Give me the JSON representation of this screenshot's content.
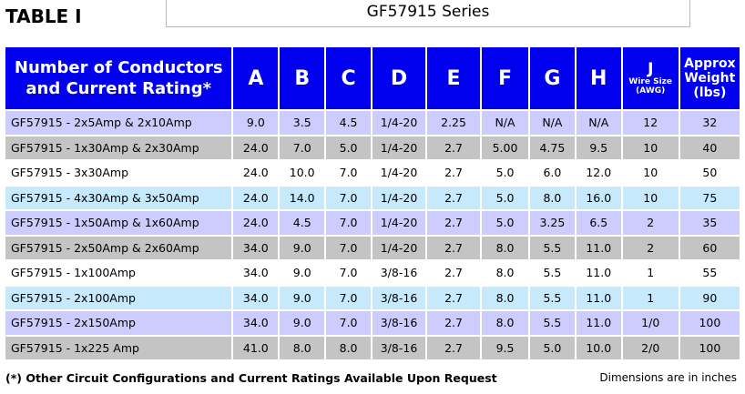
{
  "table_title": "TABLE I",
  "series_title": "GF57915 Series",
  "headers": {
    "conductors": "Number of Conductors and Current Rating*",
    "a": "A",
    "b": "B",
    "c": "C",
    "d": "D",
    "e": "E",
    "f": "F",
    "g": "G",
    "h": "H",
    "j": "J",
    "j_sub1": "Wire Size",
    "j_sub2": "(AWG)",
    "weight": "Approx Weight (lbs)"
  },
  "colors": {
    "header_bg": "#0000ee",
    "row_lavender": "#cccdfe",
    "row_gray": "#c4c4c4",
    "row_white": "#ffffff",
    "row_cyan": "#c6e9fb"
  },
  "rows": [
    {
      "name": "GF57915 - 2x5Amp  & 2x10Amp",
      "a": "9.0",
      "b": "3.5",
      "c": "4.5",
      "d": "1/4-20",
      "e": "2.25",
      "f": "N/A",
      "g": "N/A",
      "h": "N/A",
      "j": "12",
      "weight": "32"
    },
    {
      "name": "GF57915 - 1x30Amp & 2x30Amp",
      "a": "24.0",
      "b": "7.0",
      "c": "5.0",
      "d": "1/4-20",
      "e": "2.7",
      "f": "5.00",
      "g": "4.75",
      "h": "9.5",
      "j": "10",
      "weight": "40"
    },
    {
      "name": "GF57915 - 3x30Amp",
      "a": "24.0",
      "b": "10.0",
      "c": "7.0",
      "d": "1/4-20",
      "e": "2.7",
      "f": "5.0",
      "g": "6.0",
      "h": "12.0",
      "j": "10",
      "weight": "50"
    },
    {
      "name": "GF57915 - 4x30Amp & 3x50Amp",
      "a": "24.0",
      "b": "14.0",
      "c": "7.0",
      "d": "1/4-20",
      "e": "2.7",
      "f": "5.0",
      "g": "8.0",
      "h": "16.0",
      "j": "10",
      "weight": "75"
    },
    {
      "name": "GF57915 - 1x50Amp & 1x60Amp",
      "a": "24.0",
      "b": "4.5",
      "c": "7.0",
      "d": "1/4-20",
      "e": "2.7",
      "f": "5.0",
      "g": "3.25",
      "h": "6.5",
      "j": "2",
      "weight": "35"
    },
    {
      "name": "GF57915 - 2x50Amp & 2x60Amp",
      "a": "34.0",
      "b": "9.0",
      "c": "7.0",
      "d": "1/4-20",
      "e": "2.7",
      "f": "8.0",
      "g": "5.5",
      "h": "11.0",
      "j": "2",
      "weight": "60"
    },
    {
      "name": "GF57915 - 1x100Amp",
      "a": "34.0",
      "b": "9.0",
      "c": "7.0",
      "d": "3/8-16",
      "e": "2.7",
      "f": "8.0",
      "g": "5.5",
      "h": "11.0",
      "j": "1",
      "weight": "55"
    },
    {
      "name": "GF57915 - 2x100Amp",
      "a": "34.0",
      "b": "9.0",
      "c": "7.0",
      "d": "3/8-16",
      "e": "2.7",
      "f": "8.0",
      "g": "5.5",
      "h": "11.0",
      "j": "1",
      "weight": "90"
    },
    {
      "name": "GF57915 - 2x150Amp",
      "a": "34.0",
      "b": "9.0",
      "c": "7.0",
      "d": "3/8-16",
      "e": "2.7",
      "f": "8.0",
      "g": "5.5",
      "h": "11.0",
      "j": "1/0",
      "weight": "100"
    },
    {
      "name": "GF57915 - 1x225 Amp",
      "a": "41.0",
      "b": "8.0",
      "c": "8.0",
      "d": "3/8-16",
      "e": "2.7",
      "f": "9.5",
      "g": "5.0",
      "h": "10.0",
      "j": "2/0",
      "weight": "100"
    }
  ],
  "footnote": "(*) Other Circuit Configurations and Current Ratings Available Upon Request",
  "dimensions_note": "Dimensions are in inches"
}
